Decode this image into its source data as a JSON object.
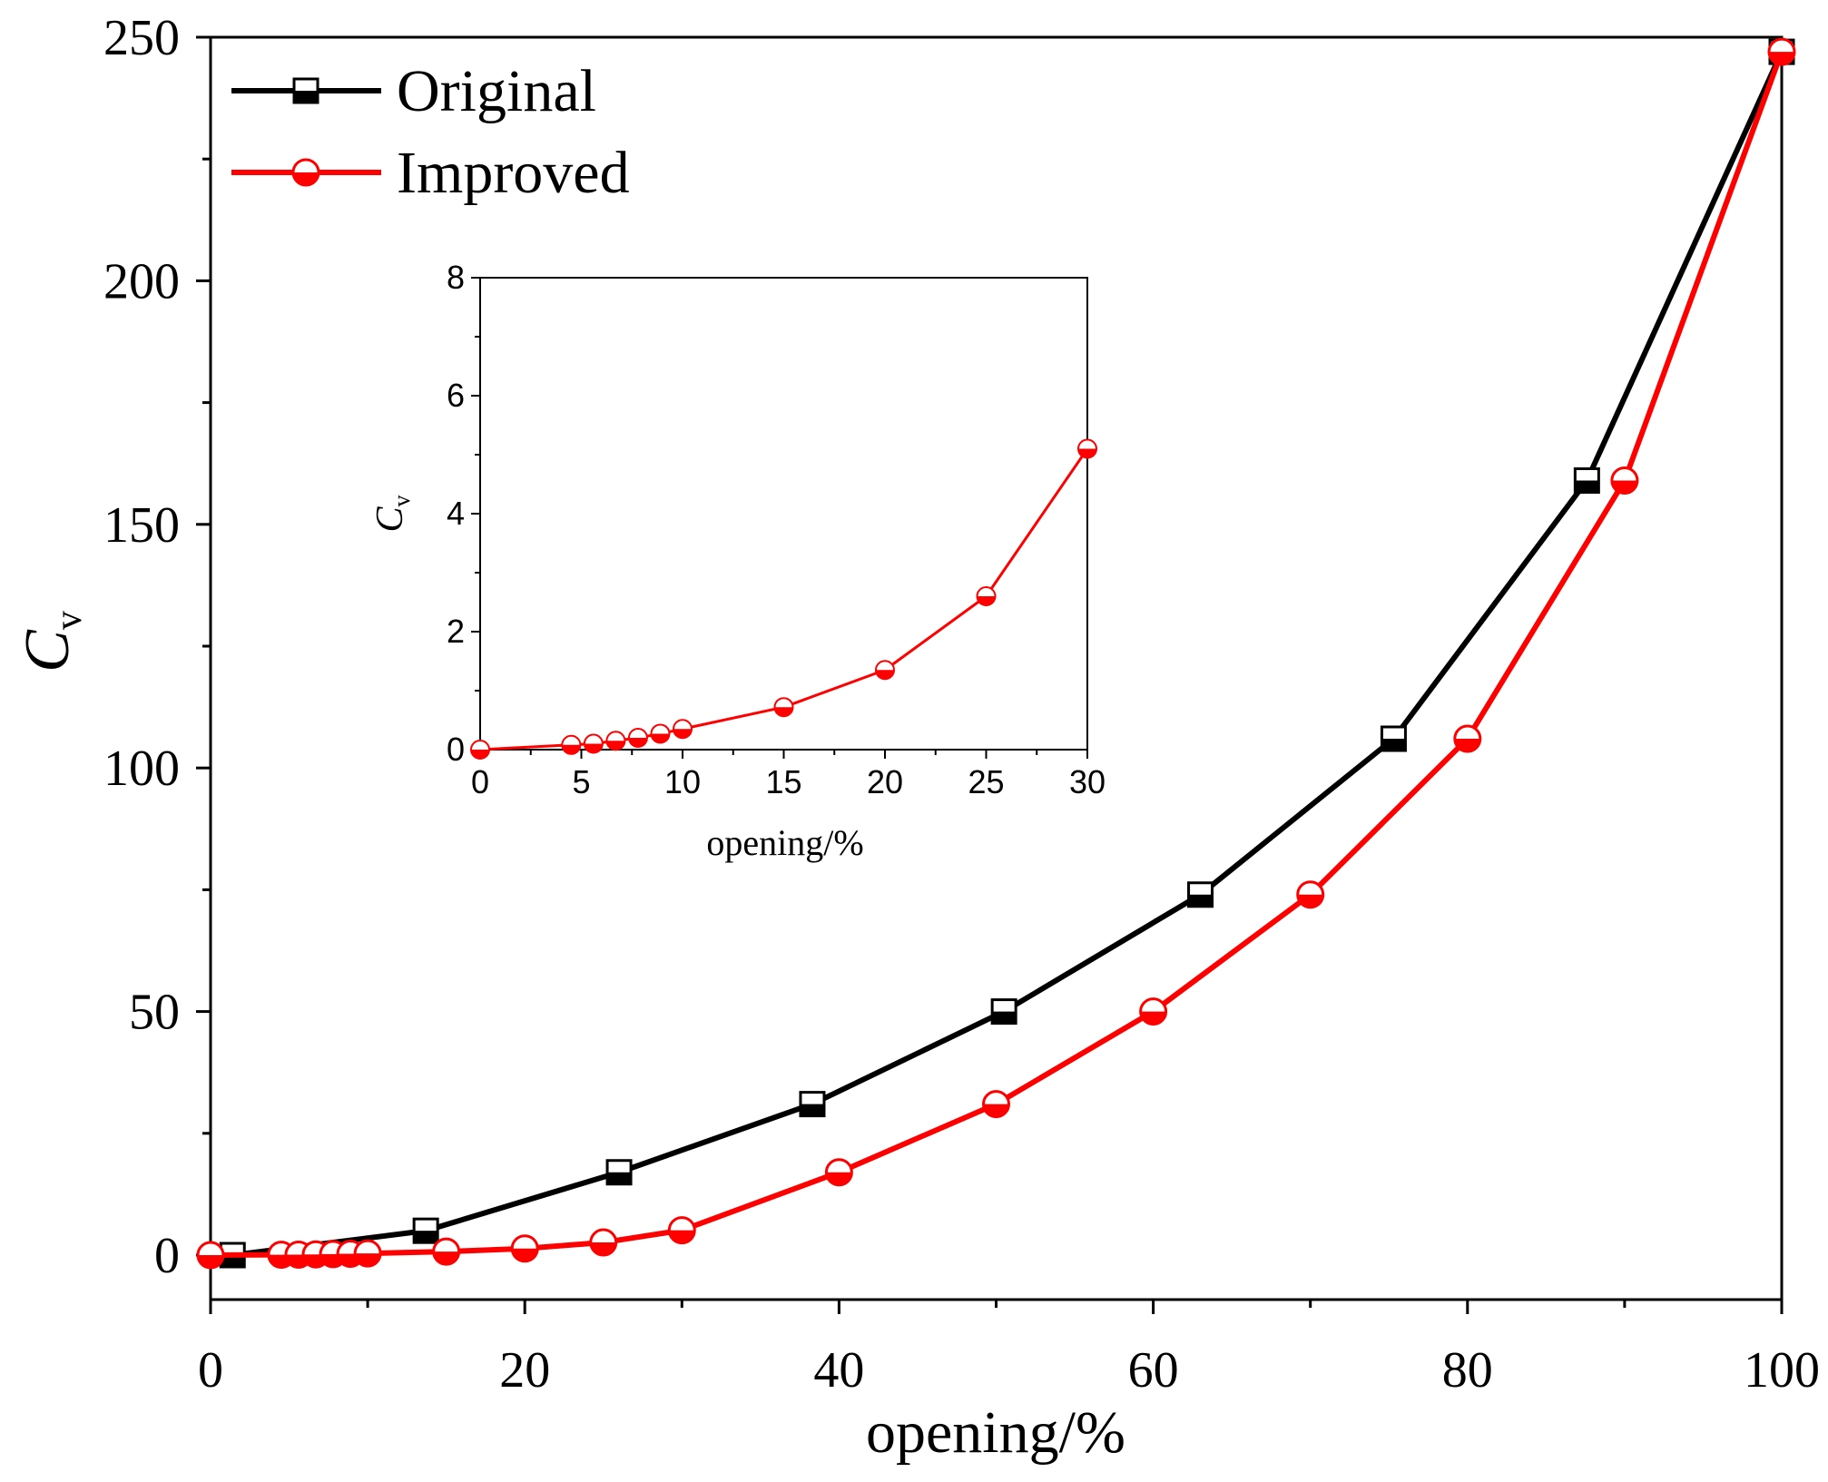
{
  "chart_data": [
    {
      "type": "line",
      "title": "",
      "xlabel": "opening/%",
      "ylabel": {
        "main": "C",
        "sub": "v"
      },
      "xlim": [
        0,
        100
      ],
      "ylim": [
        -7,
        250
      ],
      "x_ticks": [
        0,
        20,
        40,
        60,
        80,
        100
      ],
      "y_ticks": [
        0,
        50,
        100,
        150,
        200,
        250
      ],
      "x_tick_labels": [
        "0",
        "20",
        "40",
        "60",
        "80",
        "100"
      ],
      "y_tick_labels": [
        "0",
        "50",
        "100",
        "150",
        "200",
        "250"
      ],
      "grid": false,
      "legend": {
        "position": "top-left"
      },
      "series": [
        {
          "name": "Original",
          "color": "#000000",
          "marker": "half-filled-square",
          "x": [
            1.4,
            13.7,
            26.0,
            38.3,
            50.5,
            63.0,
            75.3,
            87.6,
            100
          ],
          "y": [
            0,
            5,
            17,
            31,
            50,
            74,
            106,
            159,
            247
          ]
        },
        {
          "name": "Improved",
          "color": "#ff0000",
          "marker": "half-filled-circle",
          "x": [
            0,
            4.5,
            5.6,
            6.7,
            7.8,
            8.9,
            10,
            15,
            20,
            25,
            30,
            40,
            50,
            60,
            70,
            80,
            90,
            100
          ],
          "y": [
            0,
            0.08,
            0.1,
            0.15,
            0.2,
            0.27,
            0.35,
            0.72,
            1.35,
            2.6,
            5.1,
            17,
            31,
            50,
            74,
            106,
            159,
            247
          ]
        }
      ]
    },
    {
      "type": "line",
      "title": "",
      "xlabel": "opening/%",
      "ylabel": {
        "main": "C",
        "sub": "v"
      },
      "xlim": [
        0,
        30
      ],
      "ylim": [
        0,
        8
      ],
      "x_ticks": [
        0,
        5,
        10,
        15,
        20,
        25,
        30
      ],
      "y_ticks": [
        0,
        2,
        4,
        6,
        8
      ],
      "x_tick_labels": [
        "0",
        "5",
        "10",
        "15",
        "20",
        "25",
        "30"
      ],
      "y_tick_labels": [
        "0",
        "2",
        "4",
        "6",
        "8"
      ],
      "grid": false,
      "series": [
        {
          "name": "Improved",
          "color": "#ff0000",
          "marker": "half-filled-circle",
          "x": [
            0,
            4.5,
            5.6,
            6.7,
            7.8,
            8.9,
            10,
            15,
            20,
            25,
            30
          ],
          "y": [
            0,
            0.08,
            0.1,
            0.15,
            0.2,
            0.27,
            0.35,
            0.72,
            1.35,
            2.6,
            5.1
          ]
        }
      ]
    }
  ]
}
